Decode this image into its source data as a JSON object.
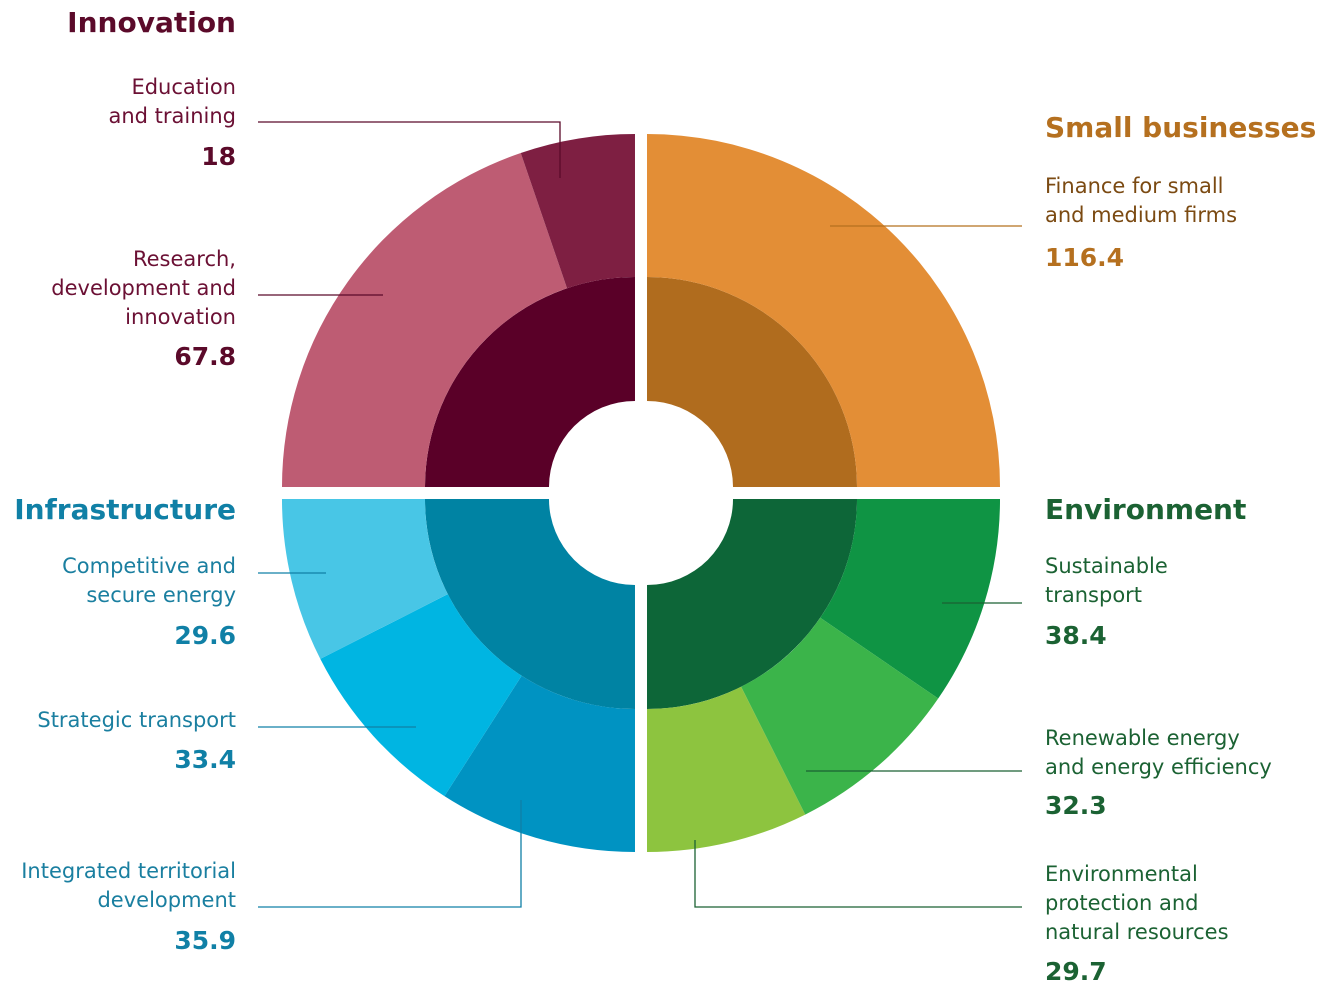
{
  "chart_data": {
    "type": "sunburst",
    "groups": [
      {
        "name": "Innovation",
        "color": "#5a0028",
        "title_color": "#5b0a2a",
        "label_color": "#6b1034",
        "items": [
          {
            "label": "Research,\ndevelopment and\ninnovation",
            "value": 67.8,
            "color": "#be5c73"
          },
          {
            "label": "Education\nand training",
            "value": 18,
            "color": "#7e1f42"
          }
        ]
      },
      {
        "name": "Small businesses",
        "color": "#b06c1e",
        "title_color": "#b5701f",
        "label_color": "#7b4a12",
        "items": [
          {
            "label": "Finance for small\nand medium firms",
            "value": 116.4,
            "color": "#e38e36"
          }
        ]
      },
      {
        "name": "Environment",
        "color": "#0d6638",
        "title_color": "#1b6233",
        "label_color": "#1b6233",
        "items": [
          {
            "label": "Sustainable\ntransport",
            "value": 38.4,
            "color": "#0f9444"
          },
          {
            "label": "Renewable energy\nand energy efficiency",
            "value": 32.3,
            "color": "#3bb44a"
          },
          {
            "label": "Environmental\nprotection and\nnatural resources",
            "value": 29.7,
            "color": "#8dc43f"
          }
        ]
      },
      {
        "name": "Infrastructure",
        "color": "#0083a3",
        "title_color": "#1080a6",
        "label_color": "#1a7fa0",
        "items": [
          {
            "label": "Integrated territorial\ndevelopment",
            "value": 35.9,
            "color": "#0093c2"
          },
          {
            "label": "Strategic transport",
            "value": 33.4,
            "color": "#00b5e2"
          },
          {
            "label": "Competitive and\nsecure energy",
            "value": 29.6,
            "color": "#48c6e6"
          }
        ]
      }
    ]
  }
}
